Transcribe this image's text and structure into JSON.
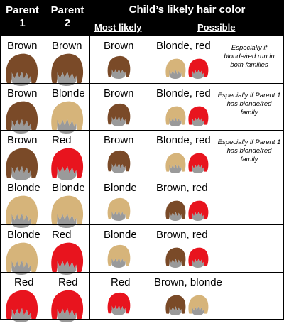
{
  "header": {
    "parent1": "Parent 1",
    "parent1_line1": "Parent",
    "parent1_line2": "1",
    "parent2_line1": "Parent",
    "parent2_line2": "2",
    "child": "Child’s likely hair color",
    "most_likely": "Most likely",
    "possible": "Possible"
  },
  "colors": {
    "brown": "#7a4a28",
    "blonde": "#d6b47a",
    "red": "#e8141e",
    "face": "#9a9a9a"
  },
  "rows": [
    {
      "parent1": "Brown",
      "parent2": "Brown",
      "most_likely": "Brown",
      "possible": "Blonde, red",
      "note": "Especially if blonde/red run in both families",
      "p1_icon": "brown",
      "p2_icon": "brown",
      "ml_icon": "brown",
      "pos_icons": [
        "blonde",
        "red"
      ]
    },
    {
      "parent1": "Brown",
      "parent2": "Blonde",
      "most_likely": "Brown",
      "possible": "Blonde, red",
      "note": "Especially if Parent 1 has blonde/red family",
      "p1_icon": "brown",
      "p2_icon": "blonde",
      "ml_icon": "brown",
      "pos_icons": [
        "blonde",
        "red"
      ]
    },
    {
      "parent1": "Brown",
      "parent2": "Red",
      "most_likely": "Brown",
      "possible": "Blonde, red",
      "note": "Especially if Parent 1 has blonde/red family",
      "p1_icon": "brown",
      "p2_icon": "red",
      "ml_icon": "brown",
      "pos_icons": [
        "blonde",
        "red"
      ]
    },
    {
      "parent1": "Blonde",
      "parent2": "Blonde",
      "most_likely": "Blonde",
      "possible": "Brown, red",
      "note": "",
      "p1_icon": "blonde",
      "p2_icon": "blonde",
      "ml_icon": "blonde",
      "pos_icons": [
        "brown",
        "red"
      ]
    },
    {
      "parent1": "Blonde",
      "parent2": "Red",
      "most_likely": "Blonde",
      "possible": "Brown, red",
      "note": "",
      "p1_icon": "blonde",
      "p2_icon": "red",
      "ml_icon": "blonde",
      "pos_icons": [
        "brown",
        "red"
      ]
    },
    {
      "parent1": "Red",
      "parent2": "Red",
      "most_likely": "Red",
      "possible": "Brown, blonde",
      "note": "",
      "p1_icon": "red",
      "p2_icon": "red",
      "ml_icon": "red",
      "pos_icons": [
        "brown",
        "blonde"
      ]
    }
  ]
}
